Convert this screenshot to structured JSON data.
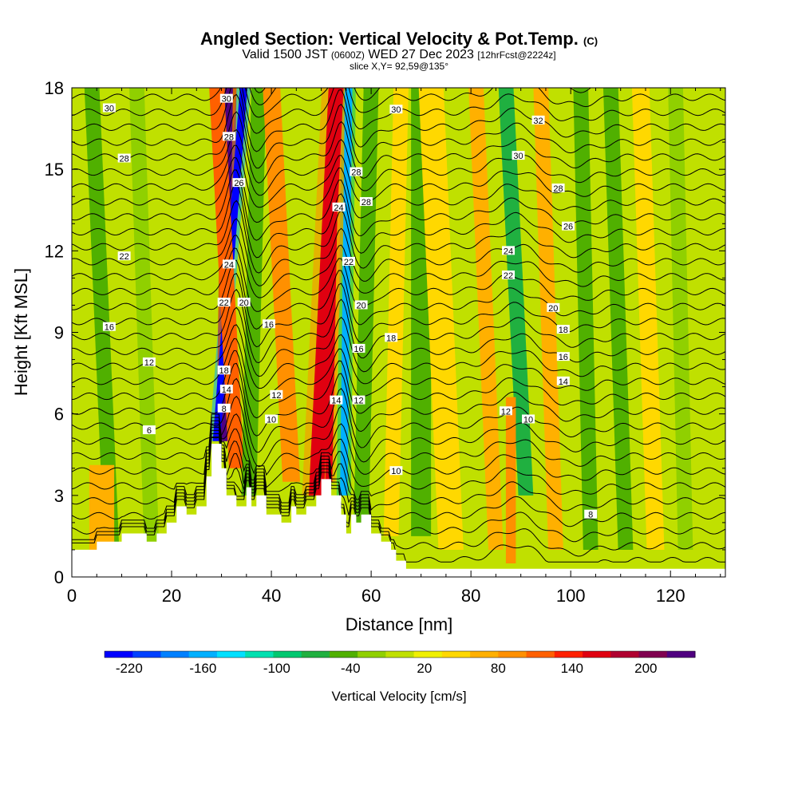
{
  "title": {
    "main": "Angled Section: Vertical Velocity & Pot.Temp.",
    "copyright": "(C)",
    "valid_prefix": "Valid 1500 JST",
    "valid_utc": "(0600Z)",
    "valid_date": "WED 27 Dec 2023",
    "forecast": "[12hrFcst@2224z]",
    "slice": "slice X,Y= 92,59@135°"
  },
  "chart_data": {
    "type": "heatmap",
    "xlabel": "Distance [nm]",
    "ylabel": "Height [Kft MSL]",
    "xlim": [
      0,
      131
    ],
    "ylim": [
      0,
      18
    ],
    "xticks": [
      0,
      20,
      40,
      60,
      80,
      100,
      120
    ],
    "yticks": [
      0,
      3,
      6,
      9,
      12,
      15,
      18
    ],
    "colorbar": {
      "label": "Vertical Velocity [cm/s]",
      "range": [
        -240,
        240
      ],
      "tick_labels": [
        -220,
        -160,
        -100,
        -40,
        20,
        80,
        140,
        200
      ],
      "colors": [
        "#0000ff",
        "#0040ff",
        "#0080ff",
        "#00b0ff",
        "#00e0ff",
        "#00e0b0",
        "#00c870",
        "#20b040",
        "#50b000",
        "#90d000",
        "#c0e000",
        "#f0f000",
        "#ffd800",
        "#ffb000",
        "#ff9000",
        "#ff6000",
        "#ff2000",
        "#e00010",
        "#b00030",
        "#800050",
        "#500080"
      ]
    },
    "terrain_profile": {
      "x": [
        0,
        5,
        5,
        10,
        10,
        15,
        15,
        17,
        17,
        19,
        19,
        21,
        21,
        23,
        23,
        25,
        25,
        27,
        27,
        28,
        28,
        30,
        30,
        31,
        31,
        33,
        33,
        35,
        35,
        36,
        36,
        37,
        37,
        39,
        39,
        42,
        42,
        44,
        44,
        45,
        45,
        47,
        47,
        49,
        49,
        50,
        50,
        52,
        52,
        54,
        54,
        55,
        55,
        56,
        56,
        57,
        57,
        58,
        58,
        60,
        60,
        62,
        62,
        64,
        64,
        65,
        65,
        67,
        67,
        70,
        70,
        131
      ],
      "y": [
        1.0,
        1.0,
        1.3,
        1.3,
        1.6,
        1.6,
        1.3,
        1.3,
        1.6,
        1.6,
        2.0,
        2.0,
        2.6,
        2.6,
        2.3,
        2.3,
        2.6,
        2.6,
        3.7,
        3.7,
        4.9,
        4.9,
        4.0,
        4.0,
        3.0,
        3.0,
        2.6,
        2.6,
        3.3,
        3.3,
        2.6,
        2.6,
        3.0,
        3.0,
        2.3,
        2.3,
        2.0,
        2.0,
        2.6,
        2.6,
        2.3,
        2.3,
        2.6,
        2.6,
        3.0,
        3.0,
        3.6,
        3.6,
        3.0,
        3.0,
        2.3,
        2.3,
        1.6,
        1.6,
        2.3,
        2.3,
        2.0,
        2.0,
        2.3,
        2.3,
        1.6,
        1.6,
        1.3,
        1.3,
        1.0,
        1.0,
        0.6,
        0.6,
        0.3,
        0.3,
        0.3,
        0.3
      ]
    },
    "velocity_features": [
      {
        "x_base": 30.5,
        "z_base": 5.0,
        "x_top": 31.5,
        "z_top": 18,
        "width_nm": 1.6,
        "value": 230
      },
      {
        "x_base": 29.0,
        "z_base": 5.0,
        "x_top": 34.5,
        "z_top": 18,
        "width_nm": 1.5,
        "value": -230
      },
      {
        "x_base": 33.0,
        "z_base": 4.0,
        "x_top": 29.0,
        "z_top": 18,
        "width_nm": 3.0,
        "value": 120
      },
      {
        "x_base": 35.5,
        "z_base": 3.0,
        "x_top": 37.5,
        "z_top": 18,
        "width_nm": 3.0,
        "value": -40
      },
      {
        "x_base": 44.0,
        "z_base": 3.5,
        "x_top": 40.0,
        "z_top": 18,
        "width_nm": 3.5,
        "value": 100
      },
      {
        "x_base": 49.0,
        "z_base": 3.0,
        "x_top": 53.0,
        "z_top": 18,
        "width_nm": 3.0,
        "value": 150
      },
      {
        "x_base": 51.5,
        "z_base": 3.5,
        "x_top": 53.0,
        "z_top": 18,
        "width_nm": 1.4,
        "value": 170
      },
      {
        "x_base": 54.5,
        "z_base": 3.0,
        "x_top": 55.5,
        "z_top": 18,
        "width_nm": 1.5,
        "value": -170
      },
      {
        "x_base": 58.0,
        "z_base": 2.0,
        "x_top": 60.0,
        "z_top": 18,
        "width_nm": 3.0,
        "value": -55
      },
      {
        "x_base": 64.0,
        "z_base": 1.5,
        "x_top": 66.0,
        "z_top": 18,
        "width_nm": 3.0,
        "value": 40
      },
      {
        "x_base": 70.0,
        "z_base": 1.5,
        "x_top": 70.0,
        "z_top": 18,
        "width_nm": 4.0,
        "value": -35
      },
      {
        "x_base": 76.0,
        "z_base": 1.0,
        "x_top": 72.0,
        "z_top": 18,
        "width_nm": 5.0,
        "value": 55
      },
      {
        "x_base": 85.0,
        "z_base": 1.0,
        "x_top": 81.0,
        "z_top": 18,
        "width_nm": 3.0,
        "value": 70
      },
      {
        "x_base": 91.0,
        "z_base": 3.0,
        "x_top": 87.0,
        "z_top": 18,
        "width_nm": 3.0,
        "value": -70
      },
      {
        "x_base": 88.0,
        "z_base": 0.5,
        "x_top": 88.0,
        "z_top": 6.5,
        "width_nm": 2.0,
        "value": 100
      },
      {
        "x_base": 97.0,
        "z_base": 1.0,
        "x_top": 94.0,
        "z_top": 18,
        "width_nm": 3.0,
        "value": 60
      },
      {
        "x_base": 104.0,
        "z_base": 1.0,
        "x_top": 102.0,
        "z_top": 18,
        "width_nm": 3.0,
        "value": -45
      },
      {
        "x_base": 111.0,
        "z_base": 1.0,
        "x_top": 108.0,
        "z_top": 18,
        "width_nm": 3.0,
        "value": -40
      },
      {
        "x_base": 117.0,
        "z_base": 1.0,
        "x_top": 114.0,
        "z_top": 18,
        "width_nm": 3.5,
        "value": 50
      },
      {
        "x_base": 123.0,
        "z_base": 1.0,
        "x_top": 121.0,
        "z_top": 18,
        "width_nm": 3.0,
        "value": -30
      },
      {
        "x_base": 8.0,
        "z_base": 1.0,
        "x_top": 4.0,
        "z_top": 18,
        "width_nm": 3.0,
        "value": -35
      },
      {
        "x_base": 16.0,
        "z_base": 1.0,
        "x_top": 13.0,
        "z_top": 18,
        "width_nm": 3.0,
        "value": -30
      },
      {
        "x_base": 6.0,
        "z_base": 0.5,
        "x_top": 6.0,
        "z_top": 4.0,
        "width_nm": 5.0,
        "value": 60
      }
    ],
    "contour_labels": [
      {
        "text": "30",
        "x": 7.5,
        "y": 17.25
      },
      {
        "text": "28",
        "x": 10.5,
        "y": 15.4
      },
      {
        "text": "22",
        "x": 10.5,
        "y": 11.8
      },
      {
        "text": "16",
        "x": 7.5,
        "y": 9.2
      },
      {
        "text": "12",
        "x": 15.5,
        "y": 7.9
      },
      {
        "text": "6",
        "x": 15.5,
        "y": 5.4
      },
      {
        "text": "30",
        "x": 31.0,
        "y": 17.6
      },
      {
        "text": "28",
        "x": 31.5,
        "y": 16.2
      },
      {
        "text": "26",
        "x": 33.5,
        "y": 14.5
      },
      {
        "text": "24",
        "x": 31.5,
        "y": 11.5
      },
      {
        "text": "22",
        "x": 30.5,
        "y": 10.1
      },
      {
        "text": "20",
        "x": 34.5,
        "y": 10.1
      },
      {
        "text": "18",
        "x": 30.5,
        "y": 7.6
      },
      {
        "text": "16",
        "x": 39.5,
        "y": 9.3
      },
      {
        "text": "14",
        "x": 31.0,
        "y": 6.9
      },
      {
        "text": "8",
        "x": 30.5,
        "y": 6.2
      },
      {
        "text": "12",
        "x": 41.0,
        "y": 6.7
      },
      {
        "text": "10",
        "x": 40.0,
        "y": 5.8
      },
      {
        "text": "30",
        "x": 65.0,
        "y": 17.2
      },
      {
        "text": "28",
        "x": 57.0,
        "y": 14.9
      },
      {
        "text": "28",
        "x": 59.0,
        "y": 13.8
      },
      {
        "text": "24",
        "x": 53.5,
        "y": 13.6
      },
      {
        "text": "22",
        "x": 55.5,
        "y": 11.6
      },
      {
        "text": "20",
        "x": 58.0,
        "y": 10.0
      },
      {
        "text": "18",
        "x": 64.0,
        "y": 8.8
      },
      {
        "text": "16",
        "x": 57.5,
        "y": 8.4
      },
      {
        "text": "14",
        "x": 53.0,
        "y": 6.5
      },
      {
        "text": "12",
        "x": 57.5,
        "y": 6.5
      },
      {
        "text": "10",
        "x": 65.0,
        "y": 3.9
      },
      {
        "text": "32",
        "x": 93.5,
        "y": 16.8
      },
      {
        "text": "30",
        "x": 89.5,
        "y": 15.5
      },
      {
        "text": "28",
        "x": 97.5,
        "y": 14.3
      },
      {
        "text": "26",
        "x": 99.5,
        "y": 12.9
      },
      {
        "text": "24",
        "x": 87.5,
        "y": 12.0
      },
      {
        "text": "22",
        "x": 87.5,
        "y": 11.1
      },
      {
        "text": "20",
        "x": 96.5,
        "y": 9.9
      },
      {
        "text": "18",
        "x": 98.5,
        "y": 9.1
      },
      {
        "text": "16",
        "x": 98.5,
        "y": 8.1
      },
      {
        "text": "14",
        "x": 98.5,
        "y": 7.2
      },
      {
        "text": "12",
        "x": 87.0,
        "y": 6.1
      },
      {
        "text": "10",
        "x": 91.5,
        "y": 5.8
      },
      {
        "text": "8",
        "x": 104.0,
        "y": 2.3
      }
    ]
  },
  "colors": {
    "background_field": "#c0e000",
    "terrain": "#ffffff",
    "contour": "#000000"
  }
}
